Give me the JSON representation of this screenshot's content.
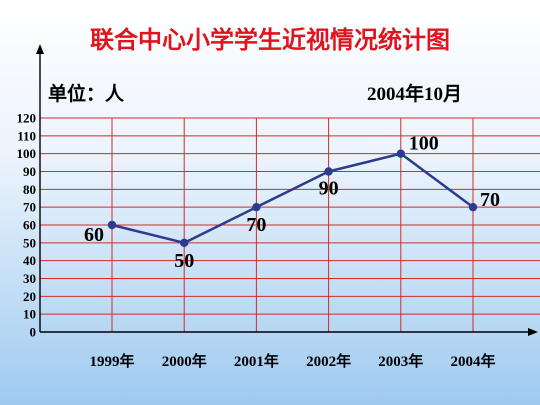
{
  "chart_data": {
    "type": "line",
    "title": "联合中心小学学生近视情况统计图",
    "unit_label": "单位：人",
    "date_label": "2004年10月",
    "categories": [
      "1999年",
      "2000年",
      "2001年",
      "2002年",
      "2003年",
      "2004年"
    ],
    "values": [
      60,
      50,
      70,
      90,
      100,
      70
    ],
    "data_labels": [
      "60",
      "50",
      "70",
      "90",
      "100",
      "70"
    ],
    "yticks": [
      "0",
      "10",
      "20",
      "30",
      "40",
      "50",
      "60",
      "70",
      "80",
      "90",
      "100",
      "110",
      "120"
    ],
    "ylim": [
      0,
      120
    ],
    "grid": true,
    "colors": {
      "grid": "#d42a2a",
      "line": "#2e3a8c",
      "marker": "#2e3a8c",
      "title": "#e0141e"
    }
  }
}
